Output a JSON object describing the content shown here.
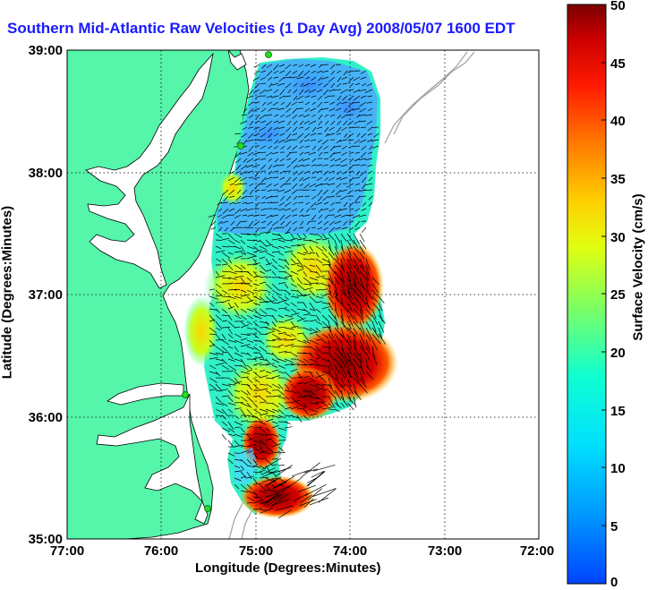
{
  "title": "Southern Mid-Atlantic Raw Velocities (1 Day Avg) 2008/05/07 1600 EDT",
  "xaxis": {
    "label": "Longitude (Degrees:Minutes)",
    "ticks": [
      "77:00",
      "76:00",
      "75:00",
      "74:00",
      "73:00",
      "72:00"
    ]
  },
  "yaxis": {
    "label": "Latitude (Degrees:Minutes)",
    "ticks": [
      "39:00",
      "38:00",
      "37:00",
      "36:00",
      "35:00"
    ]
  },
  "colorbar": {
    "label": "Surface Velocity (cm/s)",
    "ticks": [
      "50",
      "45",
      "40",
      "35",
      "30",
      "25",
      "20",
      "15",
      "10",
      "5",
      "0"
    ],
    "range": [
      0,
      50
    ]
  },
  "colors": {
    "title": "#1a1aff",
    "land": "#55f5aa",
    "station": "#22dd22",
    "bathymetry": "#a0a0a0"
  },
  "stations": 4
}
